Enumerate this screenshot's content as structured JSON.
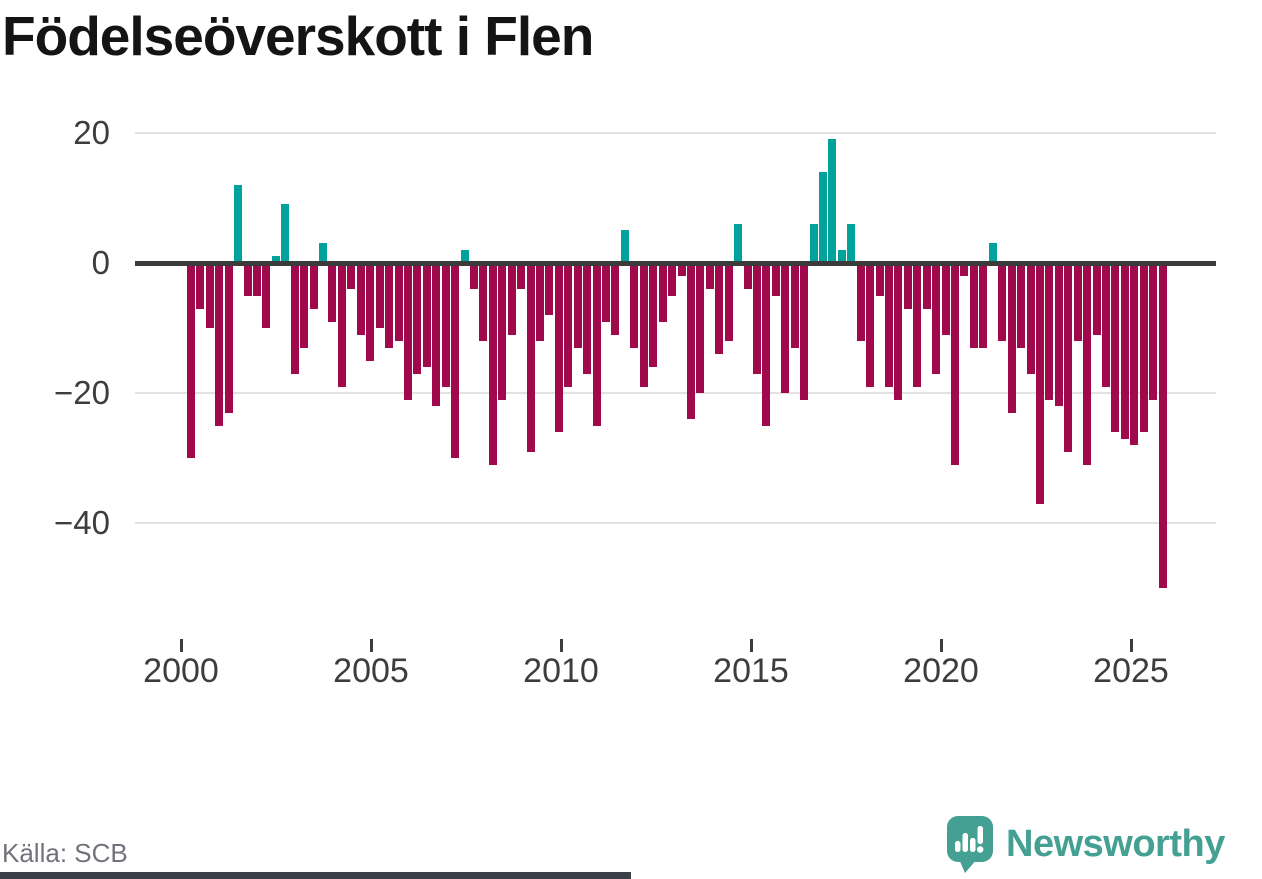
{
  "title": "Födelseöverskott i Flen",
  "source": "Källa: SCB",
  "logo": {
    "text": "Newsworthy",
    "icon": "newsworthy-speech-bubble-bar-chart-icon"
  },
  "colors": {
    "positive": "#00a29b",
    "negative": "#a00a4d",
    "axis": "#3b3b3b",
    "gridline": "#e2e2e2",
    "tick_label": "#3d3d3d",
    "title": "#141414",
    "source_text": "#70737a",
    "logo": "#44a093",
    "bottom_strip": "#3b4048",
    "background": "#ffffff"
  },
  "chart_data": {
    "type": "bar",
    "title": "Födelseöverskott i Flen",
    "frequency": "quarterly",
    "x_start_year": 2000,
    "x_ticks": [
      2000,
      2005,
      2010,
      2015,
      2020,
      2025
    ],
    "y_ticks": [
      20,
      0,
      -20,
      -40
    ],
    "ylim": [
      -52,
      22
    ],
    "grid": "horizontal",
    "values": [
      -30,
      -7,
      -10,
      -25,
      -23,
      12,
      -5,
      -5,
      -10,
      1,
      9,
      -17,
      -13,
      -7,
      3,
      -9,
      -19,
      -4,
      -11,
      -15,
      -10,
      -13,
      -12,
      -21,
      -17,
      -16,
      -22,
      -19,
      -30,
      2,
      -4,
      -12,
      -31,
      -21,
      -11,
      -4,
      -29,
      -12,
      -8,
      -26,
      -19,
      -13,
      -17,
      -25,
      -9,
      -11,
      5,
      -13,
      -19,
      -16,
      -9,
      -5,
      -2,
      -24,
      -20,
      -4,
      -14,
      -12,
      6,
      -4,
      -17,
      -25,
      -5,
      -20,
      -13,
      -21,
      6,
      14,
      19,
      2,
      6,
      -12,
      -19,
      -5,
      -19,
      -21,
      -7,
      -19,
      -7,
      -17,
      -11,
      -31,
      -2,
      -13,
      -13,
      3,
      -12,
      -23,
      -13,
      -17,
      -37,
      -21,
      -22,
      -29,
      -12,
      -31,
      -11,
      -19,
      -26,
      -27,
      -28,
      -26,
      -21,
      -50
    ]
  }
}
